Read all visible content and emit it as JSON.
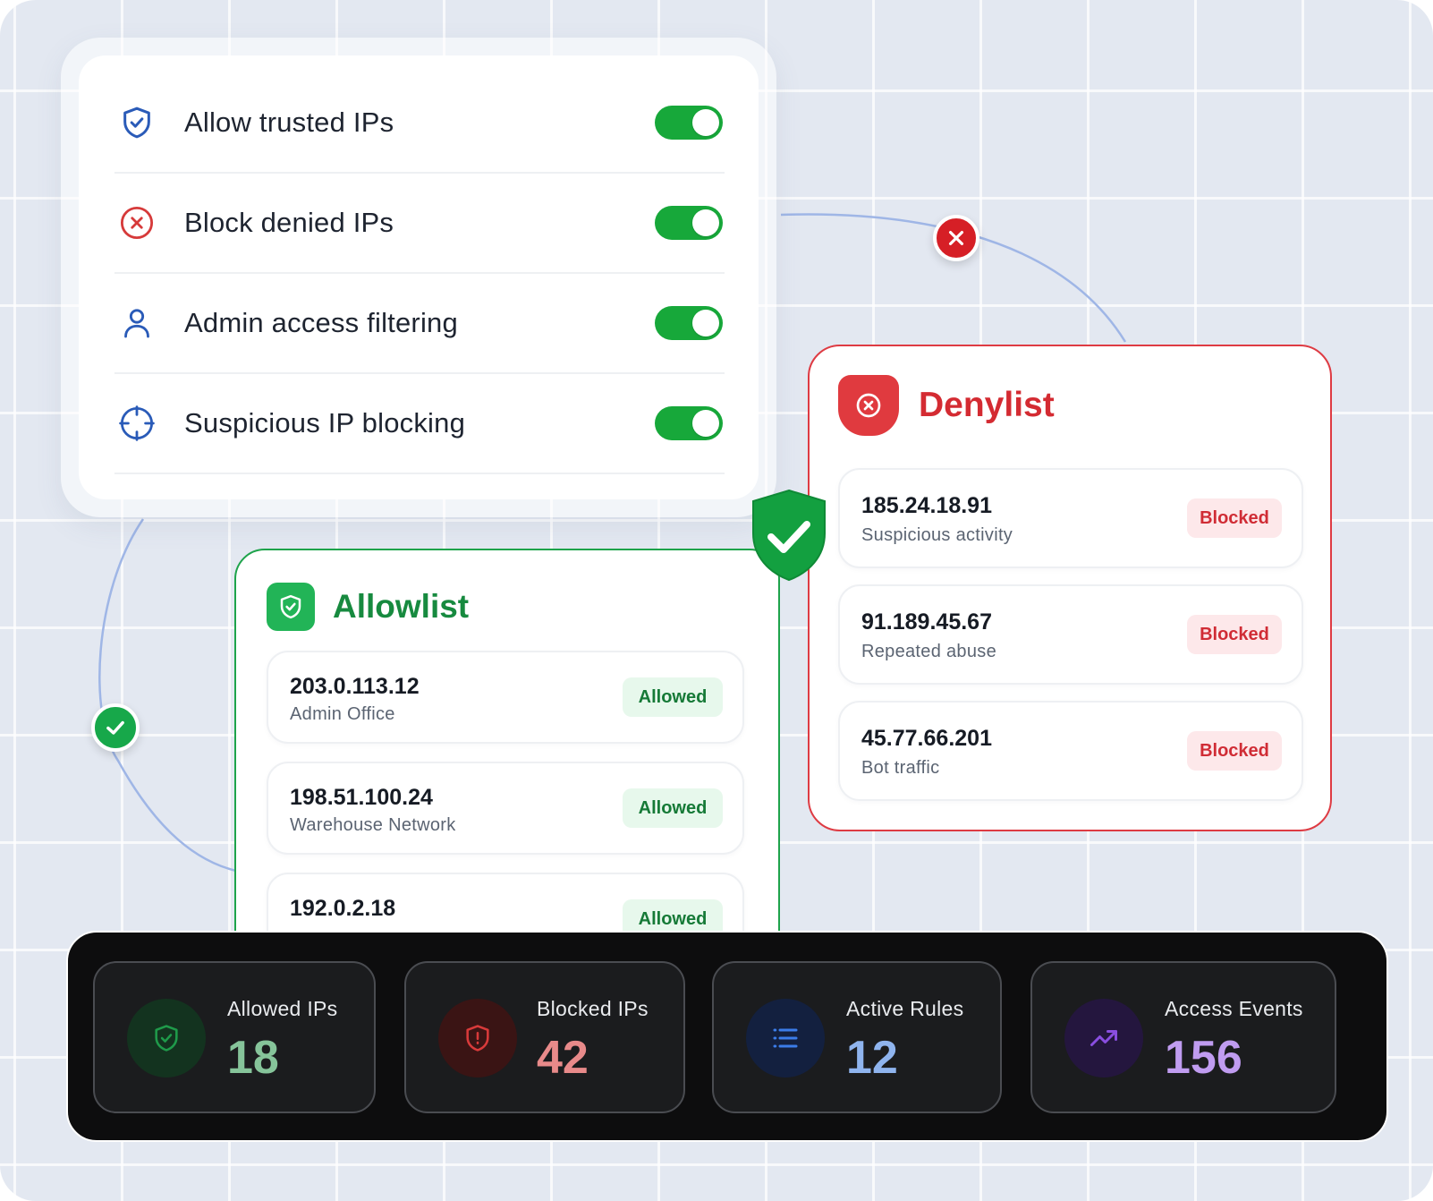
{
  "settings": {
    "items": [
      {
        "label": "Allow trusted IPs",
        "icon": "shield-check-icon",
        "enabled": true
      },
      {
        "label": "Block denied IPs",
        "icon": "x-circle-icon",
        "enabled": true
      },
      {
        "label": "Admin access filtering",
        "icon": "user-icon",
        "enabled": true
      },
      {
        "label": "Suspicious IP blocking",
        "icon": "crosshair-icon",
        "enabled": true
      }
    ]
  },
  "allowlist": {
    "title": "Allowlist",
    "items": [
      {
        "ip": "203.0.113.12",
        "desc": "Admin Office",
        "status": "Allowed"
      },
      {
        "ip": "198.51.100.24",
        "desc": "Warehouse Network",
        "status": "Allowed"
      },
      {
        "ip": "192.0.2.18",
        "desc": "",
        "status": "Allowed"
      }
    ]
  },
  "denylist": {
    "title": "Denylist",
    "items": [
      {
        "ip": "185.24.18.91",
        "desc": "Suspicious activity",
        "status": "Blocked"
      },
      {
        "ip": "91.189.45.67",
        "desc": "Repeated abuse",
        "status": "Blocked"
      },
      {
        "ip": "45.77.66.201",
        "desc": "Bot traffic",
        "status": "Blocked"
      }
    ]
  },
  "stats": [
    {
      "label": "Allowed IPs",
      "value": "18",
      "icon": "shield-check-icon",
      "color": "#86c49a",
      "bg": "#13331f",
      "iconColor": "#1f9a4a"
    },
    {
      "label": "Blocked IPs",
      "value": "42",
      "icon": "shield-alert-icon",
      "color": "#e88a8a",
      "bg": "#3a1414",
      "iconColor": "#d83a3a"
    },
    {
      "label": "Active Rules",
      "value": "12",
      "icon": "list-icon",
      "color": "#8fb4ee",
      "bg": "#13203f",
      "iconColor": "#3b7ce8"
    },
    {
      "label": "Access Events",
      "value": "156",
      "icon": "trending-up-icon",
      "color": "#c09cf0",
      "bg": "#24163e",
      "iconColor": "#8a4ee0"
    }
  ],
  "colors": {
    "toggle_on": "#17a83a",
    "allow_accent": "#178a3f",
    "deny_accent": "#d42b32",
    "background": "#e3e8f1"
  }
}
